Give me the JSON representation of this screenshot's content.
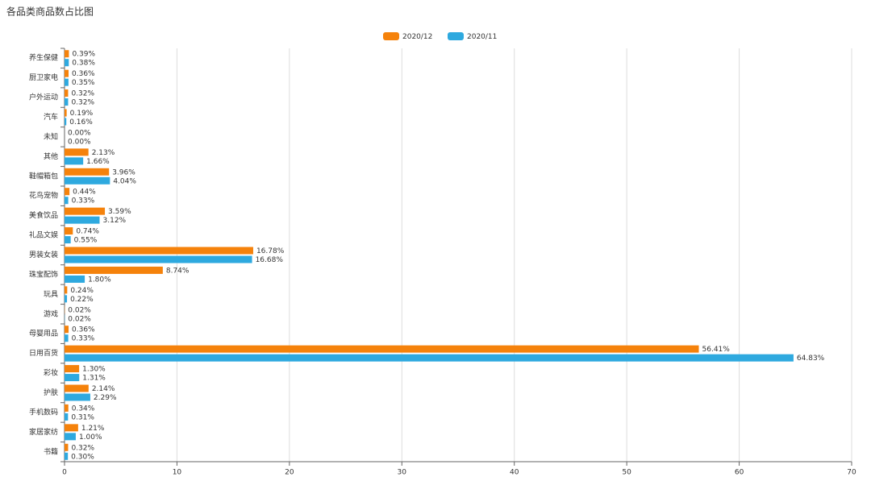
{
  "chart_data": {
    "type": "hbar",
    "title": "各品类商品数占比图",
    "categories": [
      "养生保健",
      "厨卫家电",
      "户外运动",
      "汽车",
      "未知",
      "其他",
      "鞋帽箱包",
      "花鸟宠物",
      "美食饮品",
      "礼品文娱",
      "男装女装",
      "珠宝配饰",
      "玩具",
      "游戏",
      "母婴用品",
      "日用百货",
      "彩妆",
      "护肤",
      "手机数码",
      "家居家纺",
      "书籍"
    ],
    "series": [
      {
        "name": "2020/12",
        "color": "#f5820b",
        "values": [
          0.39,
          0.36,
          0.32,
          0.19,
          0,
          2.13,
          3.96,
          0.44,
          3.59,
          0.74,
          16.78,
          8.74,
          0.24,
          0.02,
          0.36,
          56.41,
          1.3,
          2.14,
          0.34,
          1.21,
          0.32
        ],
        "value_labels": [
          "0.39%",
          "0.36%",
          "0.32%",
          "0.19%",
          "0.00%",
          "2.13%",
          "3.96%",
          "0.44%",
          "3.59%",
          "0.74%",
          "16.78%",
          "8.74%",
          "0.24%",
          "0.02%",
          "0.36%",
          "56.41%",
          "1.30%",
          "2.14%",
          "0.34%",
          "1.21%",
          "0.32%"
        ]
      },
      {
        "name": "2020/11",
        "color": "#2ea9df",
        "values": [
          0.38,
          0.35,
          0.32,
          0.16,
          0,
          1.66,
          4.04,
          0.33,
          3.12,
          0.55,
          16.68,
          1.8,
          0.22,
          0.02,
          0.33,
          64.83,
          1.31,
          2.29,
          0.31,
          1.0,
          0.3
        ],
        "value_labels": [
          "0.38%",
          "0.35%",
          "0.32%",
          "0.16%",
          "0.00%",
          "1.66%",
          "4.04%",
          "0.33%",
          "3.12%",
          "0.55%",
          "16.68%",
          "1.80%",
          "0.22%",
          "0.02%",
          "0.33%",
          "64.83%",
          "1.31%",
          "2.29%",
          "0.31%",
          "1.00%",
          "0.30%"
        ]
      }
    ],
    "xlim": [
      0,
      70
    ],
    "xticks": [
      0,
      10,
      20,
      30,
      40,
      50,
      60,
      70
    ],
    "grid": true
  }
}
